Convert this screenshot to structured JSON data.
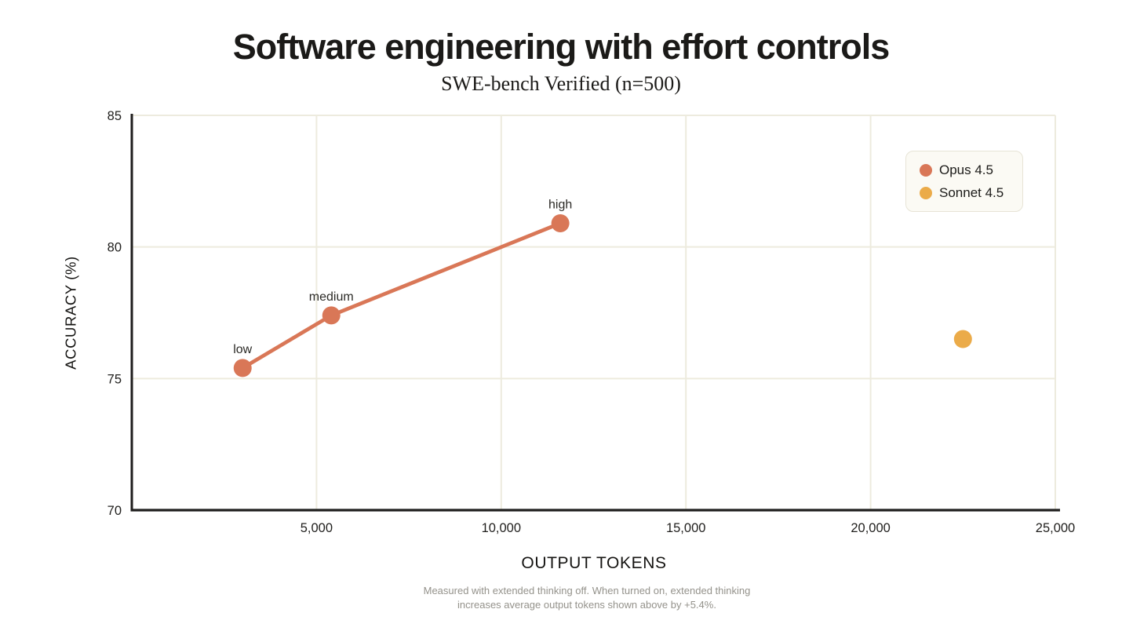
{
  "chart": {
    "title": "Software engineering with effort controls",
    "subtitle": "SWE-bench Verified (n=500)",
    "xlabel": "OUTPUT TOKENS",
    "ylabel": "ACCURACY (%)"
  },
  "chart_data": {
    "type": "line",
    "title": "Software engineering with effort controls",
    "subtitle": "SWE-bench Verified (n=500)",
    "xlabel": "OUTPUT TOKENS",
    "ylabel": "ACCURACY (%)",
    "xlim": [
      0,
      25000
    ],
    "ylim": [
      70,
      85
    ],
    "x_ticks": [
      5000,
      10000,
      15000,
      20000,
      25000
    ],
    "x_tick_labels": [
      "5,000",
      "10,000",
      "15,000",
      "20,000",
      "25,000"
    ],
    "y_ticks": [
      70,
      75,
      80,
      85
    ],
    "y_tick_labels": [
      "70",
      "75",
      "80",
      "85"
    ],
    "grid": true,
    "legend_position": "top-right",
    "series": [
      {
        "name": "Opus 4.5",
        "color": "#d97757",
        "line": true,
        "points": [
          {
            "x": 3000,
            "y": 75.4,
            "label": "low"
          },
          {
            "x": 5400,
            "y": 77.4,
            "label": "medium"
          },
          {
            "x": 11600,
            "y": 80.9,
            "label": "high"
          }
        ]
      },
      {
        "name": "Sonnet 4.5",
        "color": "#ebab49",
        "line": false,
        "points": [
          {
            "x": 22500,
            "y": 76.5,
            "label": ""
          }
        ]
      }
    ]
  },
  "footnote": {
    "line1": "Measured with extended thinking off. When turned on, extended thinking",
    "line2": "increases average output tokens shown above by +5.4%."
  },
  "colors": {
    "opus": "#d97757",
    "sonnet": "#ebab49",
    "grid": "#edebde",
    "axis": "#1f1e1d",
    "text": "#1b1a18",
    "footnote": "#94928b",
    "legend_bg": "#fbfaf4",
    "legend_border": "#e7e4d6"
  }
}
